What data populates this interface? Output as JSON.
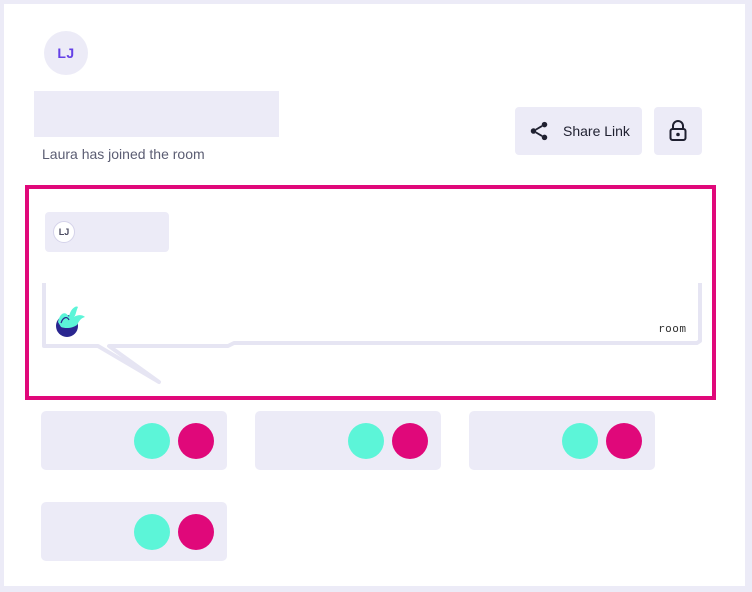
{
  "user": {
    "initials": "LJ"
  },
  "status": {
    "message": "Laura has joined the room"
  },
  "toolbar": {
    "share_label": "Share Link",
    "share_icon": "share-icon",
    "lock_icon": "lock-icon"
  },
  "highlight": {
    "color": "#e0087a",
    "mini_initials": "LJ",
    "bubble_text": "room",
    "logo_icon": "plant-logo-icon"
  },
  "cards": [
    {
      "colors": [
        "#5cf5d8",
        "#e0087a"
      ]
    },
    {
      "colors": [
        "#5cf5d8",
        "#e0087a"
      ]
    },
    {
      "colors": [
        "#5cf5d8",
        "#e0087a"
      ]
    },
    {
      "colors": [
        "#5cf5d8",
        "#e0087a"
      ]
    }
  ]
}
